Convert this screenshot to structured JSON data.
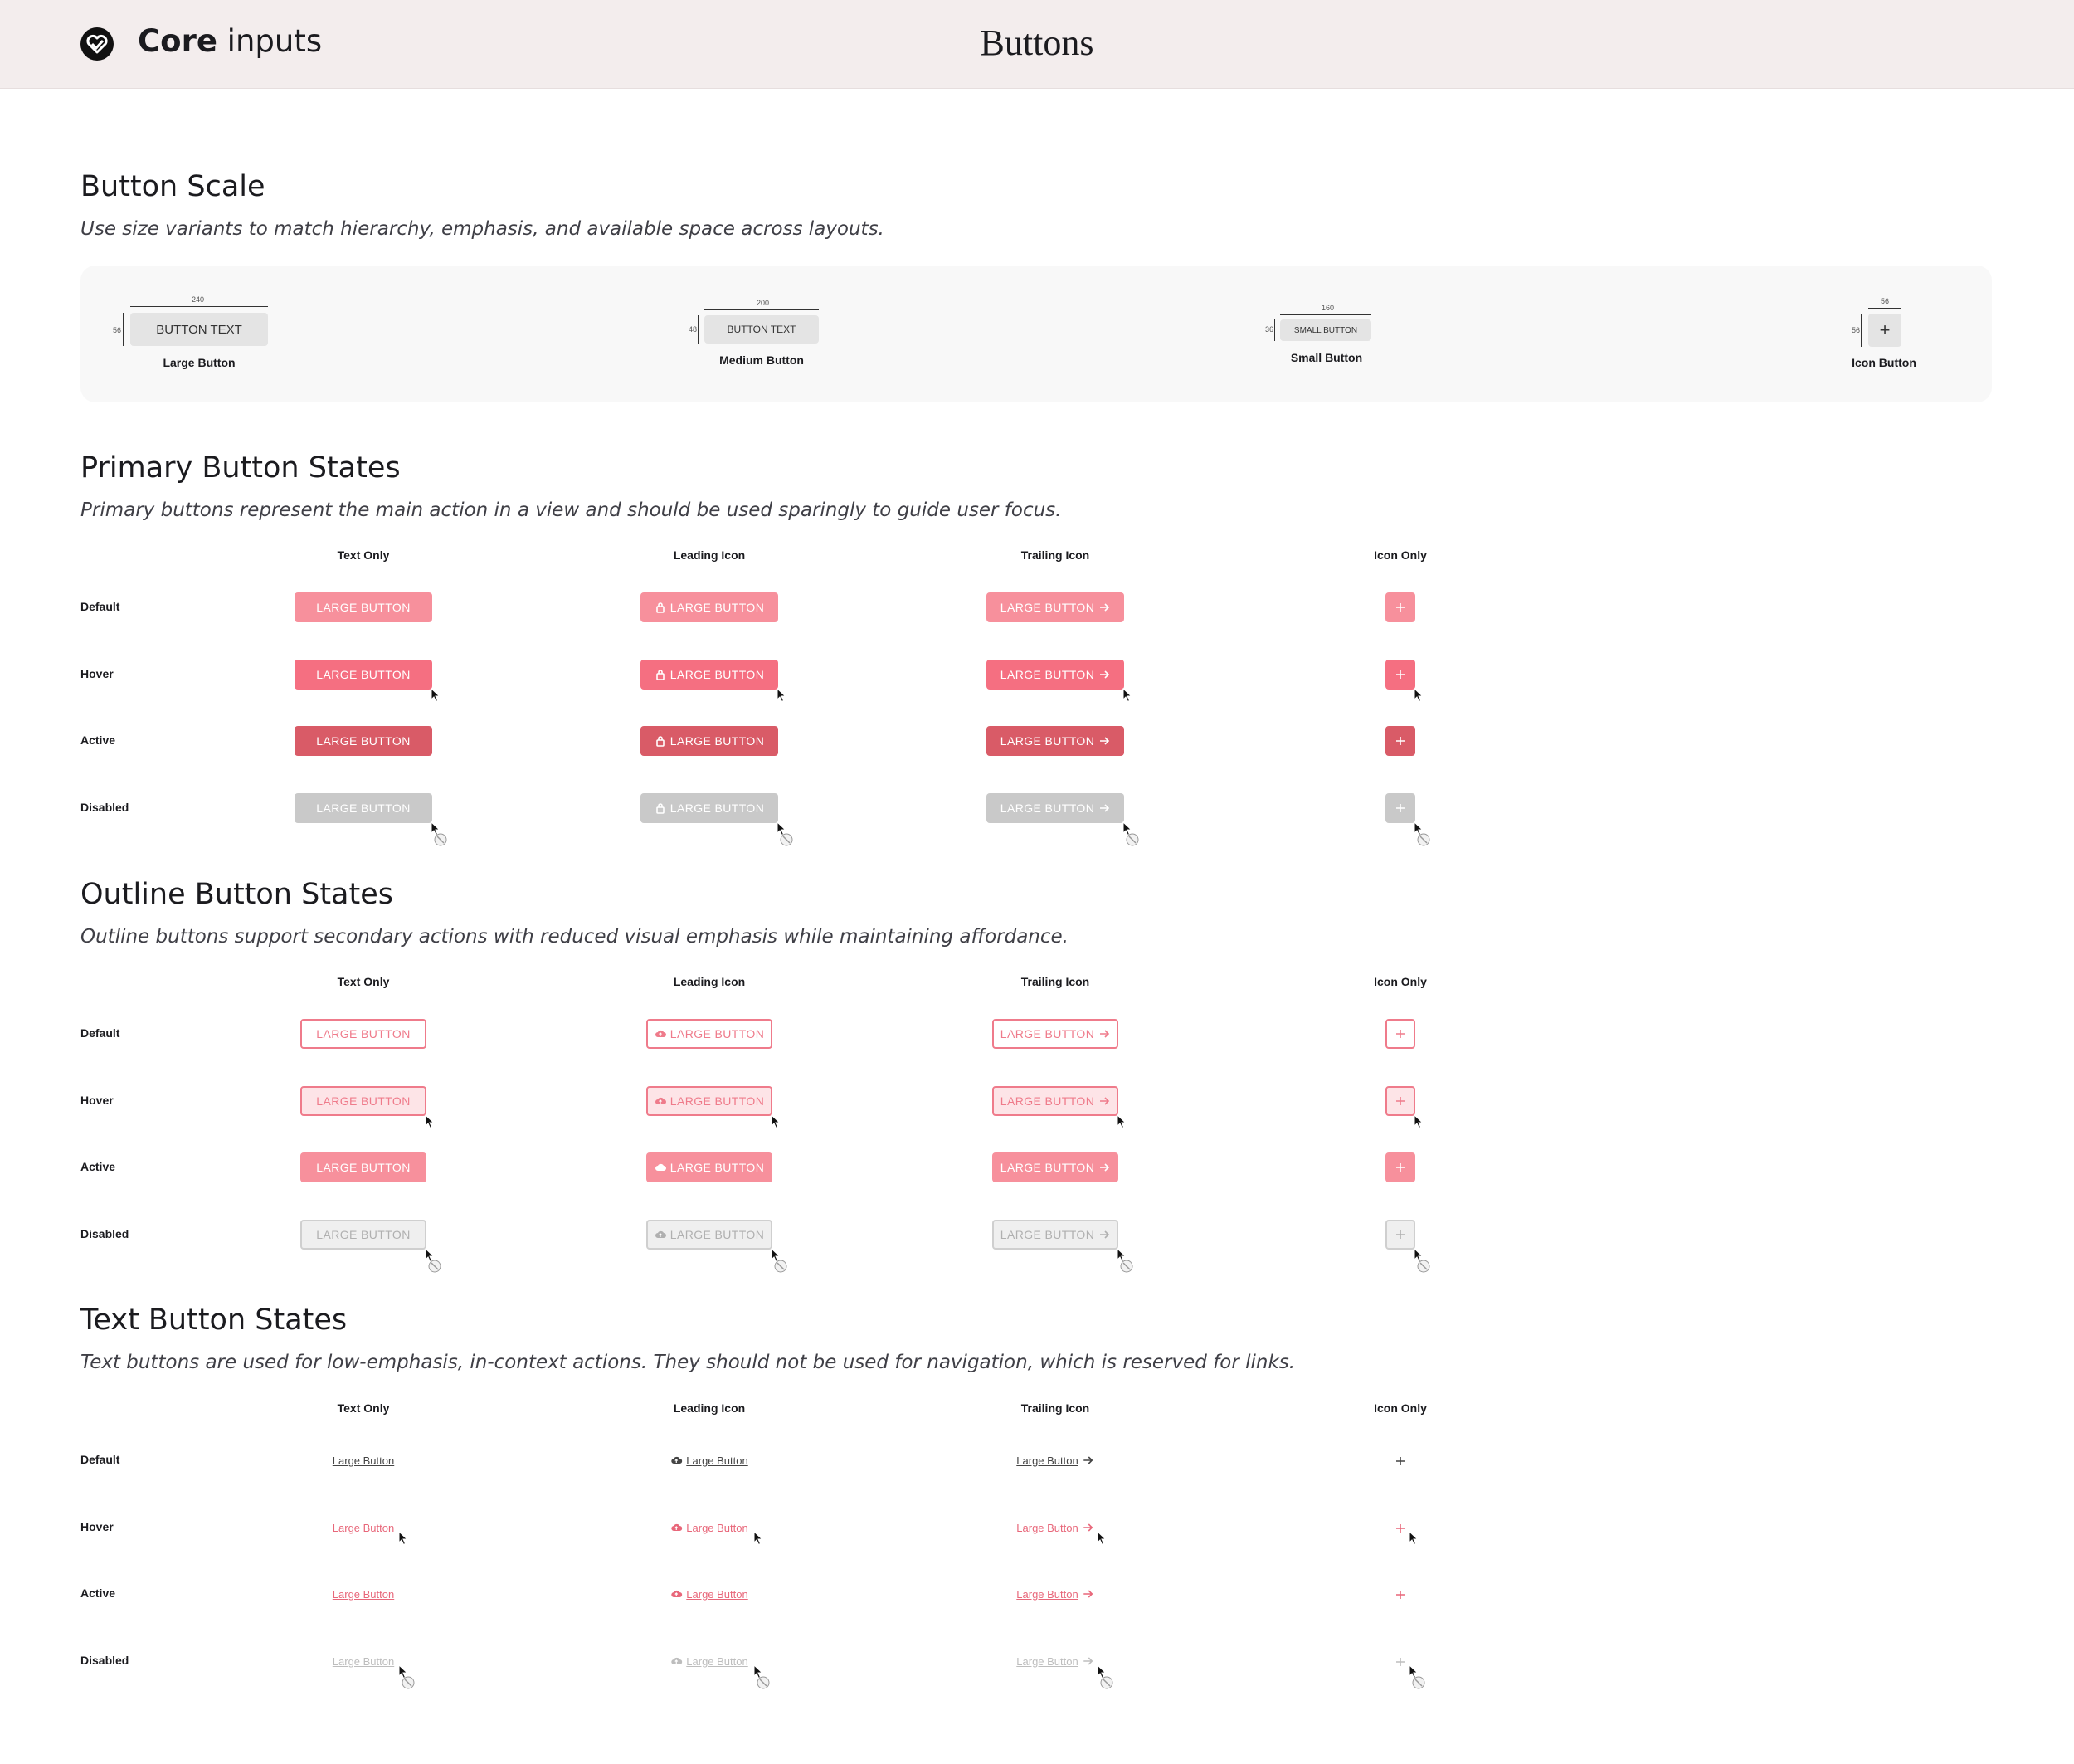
{
  "header": {
    "app_title_bold": "Core",
    "app_title_rest": " inputs",
    "page_title": "Buttons"
  },
  "scale": {
    "title": "Button Scale",
    "description": "Use size variants to match hierarchy, emphasis, and available space across layouts.",
    "items": [
      {
        "label": "Large Button",
        "button_text": "BUTTON TEXT",
        "width": "240",
        "height": "56"
      },
      {
        "label": "Medium Button",
        "button_text": "BUTTON TEXT",
        "width": "200",
        "height": "48"
      },
      {
        "label": "Small Button",
        "button_text": "SMALL BUTTON",
        "width": "160",
        "height": "36"
      },
      {
        "label": "Icon Button",
        "button_text": "+",
        "width": "56",
        "height": "56"
      }
    ]
  },
  "columns": [
    "Text Only",
    "Leading Icon",
    "Trailing Icon",
    "Icon Only"
  ],
  "rows": [
    "Default",
    "Hover",
    "Active",
    "Disabled"
  ],
  "primary": {
    "title": "Primary Button States",
    "description": "Primary buttons represent the main action in a view and should be used sparingly to guide user focus.",
    "button_label": "LARGE BUTTON"
  },
  "outline": {
    "title": "Outline Button States",
    "description": "Outline buttons support secondary actions with reduced visual emphasis while maintaining affordance.",
    "button_label": "LARGE BUTTON"
  },
  "text": {
    "title": "Text Button States",
    "description": "Text buttons are used for low-emphasis, in-context actions. They should not be used for navigation, which is reserved for links.",
    "button_label": "Large Button"
  },
  "icons": {
    "logo": "heart-check-icon",
    "leading_primary": "lock-icon",
    "leading_outline": "cloud-icon",
    "trailing": "arrow-right-icon",
    "icon_only": "plus-icon",
    "cursor": "cursor-icon",
    "disabled_cursor": "no-entry-icon"
  },
  "colors": {
    "primary_default": "#f7909c",
    "primary_hover": "#f56f81",
    "primary_active": "#d95b67",
    "primary_disabled": "#c9c9c9",
    "outline_border": "#ef7b8b",
    "outline_hover_bg": "#fde4e7",
    "text_accent": "#e8677a"
  }
}
